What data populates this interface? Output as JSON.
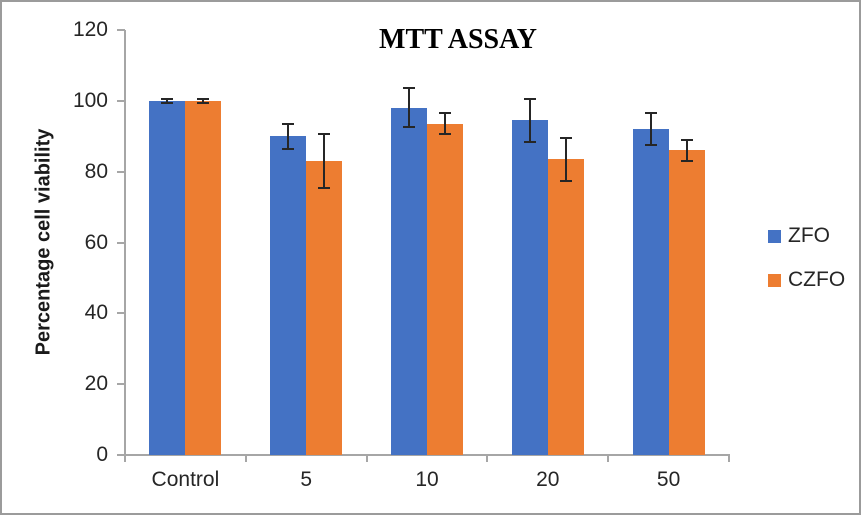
{
  "frame": {
    "border_color": "#9b9b9b",
    "background": "#ffffff"
  },
  "chart_data": {
    "type": "bar",
    "title": "MTT ASSAY",
    "xlabel": "",
    "ylabel": "Percentage cell viability",
    "categories": [
      "Control",
      "5",
      "10",
      "20",
      "50"
    ],
    "series": [
      {
        "name": "ZFO",
        "color": "#4472C4",
        "values": [
          100,
          90,
          98,
          94.5,
          92
        ],
        "errors": [
          0.6,
          3.5,
          5.5,
          6,
          4.5
        ]
      },
      {
        "name": "CZFO",
        "color": "#ED7D31",
        "values": [
          100,
          83,
          93.5,
          83.5,
          86
        ],
        "errors": [
          0.6,
          7.5,
          3,
          6,
          3
        ]
      }
    ],
    "ylim": [
      0,
      120
    ],
    "yticks": [
      0,
      20,
      40,
      60,
      80,
      100,
      120
    ],
    "grid": false,
    "error_bars": true,
    "legend_position": "right",
    "legend_entries": [
      "ZFO",
      "CZFO"
    ],
    "axis_color": "#a6a6a6",
    "text_color": "#262626"
  }
}
